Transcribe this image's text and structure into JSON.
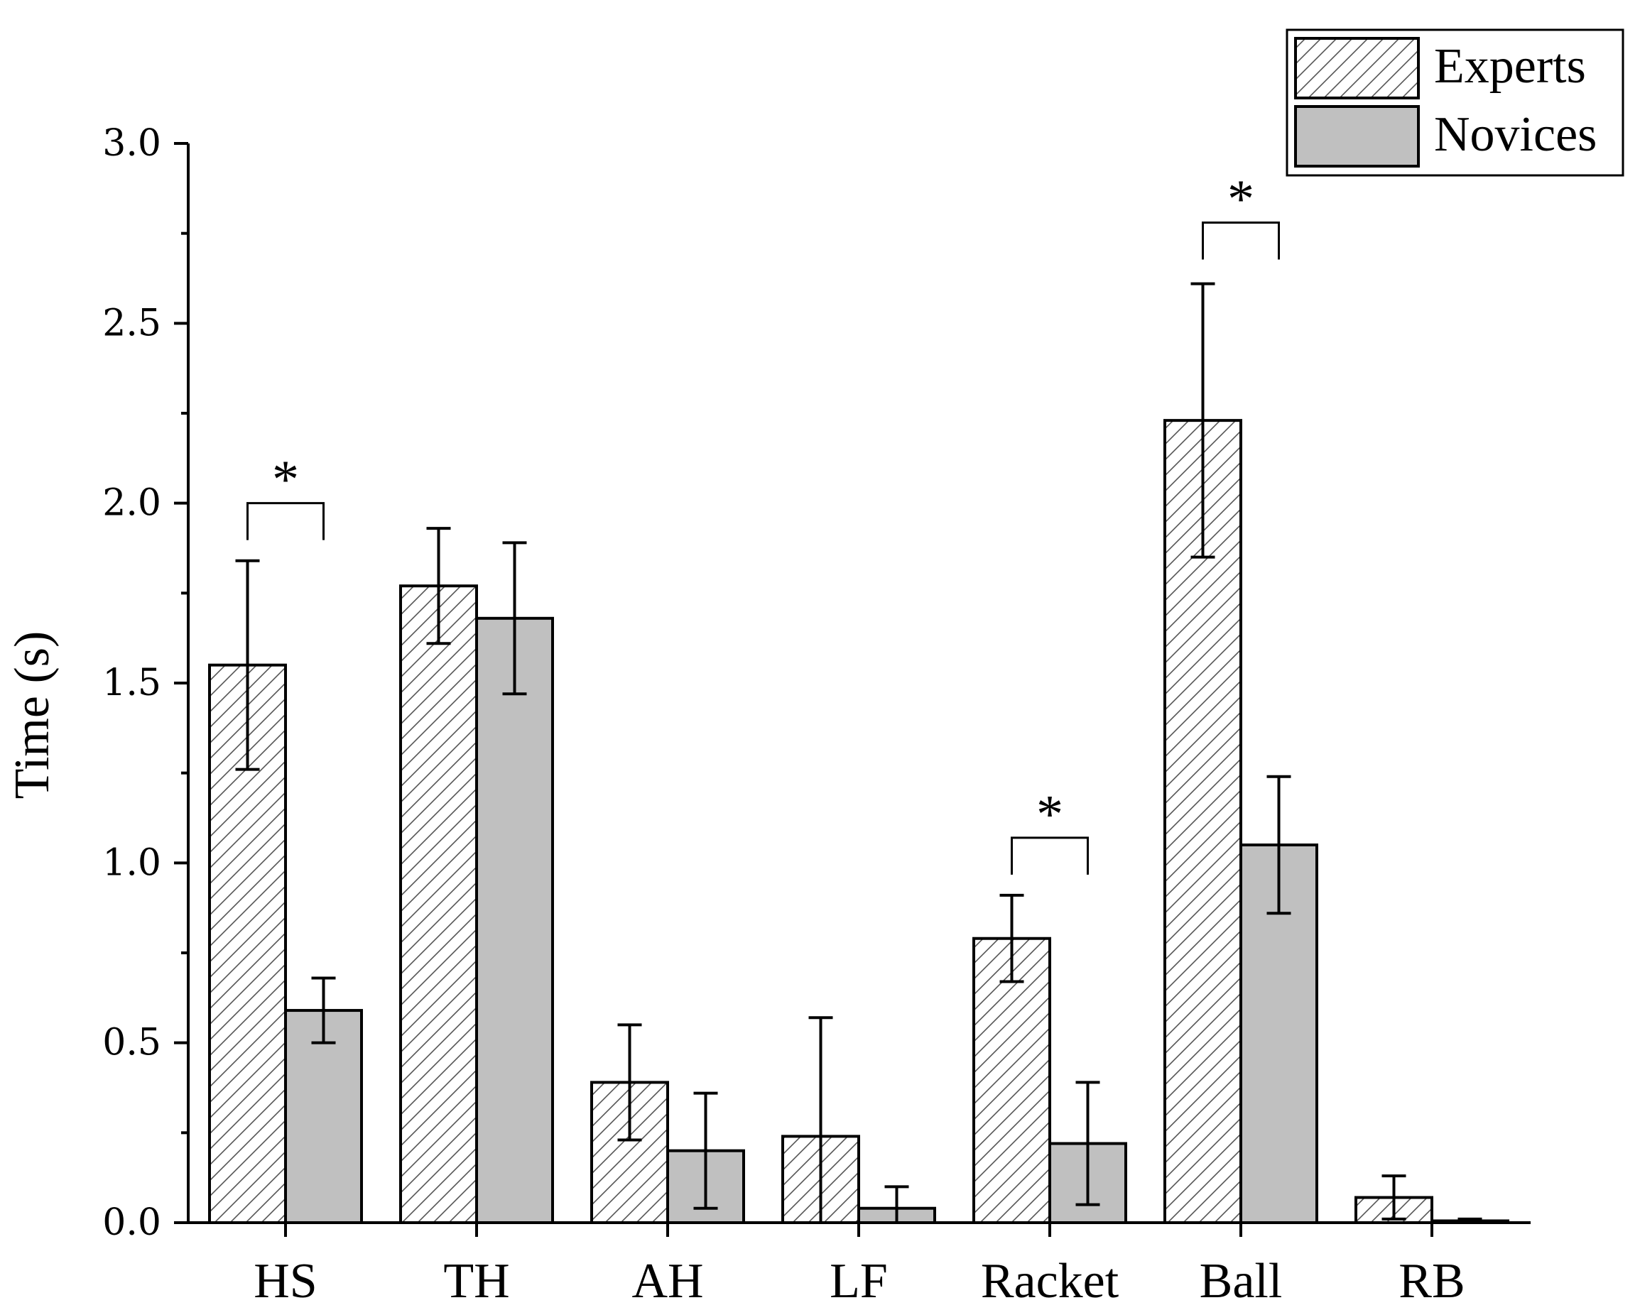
{
  "chart_data": {
    "type": "bar",
    "title": "",
    "xlabel": "",
    "ylabel": "Time (s)",
    "ylim": [
      0,
      3.0
    ],
    "yticks": [
      "0.0",
      "0.5",
      "1.0",
      "1.5",
      "2.0",
      "2.5",
      "3.0"
    ],
    "categories": [
      "HS",
      "TH",
      "AH",
      "LF",
      "Racket",
      "Ball",
      "RB"
    ],
    "series": [
      {
        "name": "Experts",
        "pattern": "hatched",
        "values": [
          1.55,
          1.77,
          0.39,
          0.24,
          0.79,
          2.23,
          0.07
        ],
        "error_upper": [
          1.84,
          1.93,
          0.55,
          0.57,
          0.91,
          2.61,
          0.13
        ],
        "error_lower": [
          1.26,
          1.61,
          0.23,
          0.0,
          0.67,
          1.85,
          0.01
        ]
      },
      {
        "name": "Novices",
        "color": "#c0c0c0",
        "values": [
          0.59,
          1.68,
          0.2,
          0.04,
          0.22,
          1.05,
          0.005
        ],
        "error_upper": [
          0.68,
          1.89,
          0.36,
          0.1,
          0.39,
          1.24,
          0.01
        ],
        "error_lower": [
          0.5,
          1.47,
          0.04,
          0.0,
          0.05,
          0.86,
          0.0
        ]
      }
    ],
    "significance": [
      {
        "category": "HS",
        "label": "*",
        "bracket_y": 2.0
      },
      {
        "category": "Racket",
        "label": "*",
        "bracket_y": 1.07
      },
      {
        "category": "Ball",
        "label": "*",
        "bracket_y": 2.78
      }
    ],
    "legend": {
      "position": "top-right"
    },
    "grid": false
  }
}
